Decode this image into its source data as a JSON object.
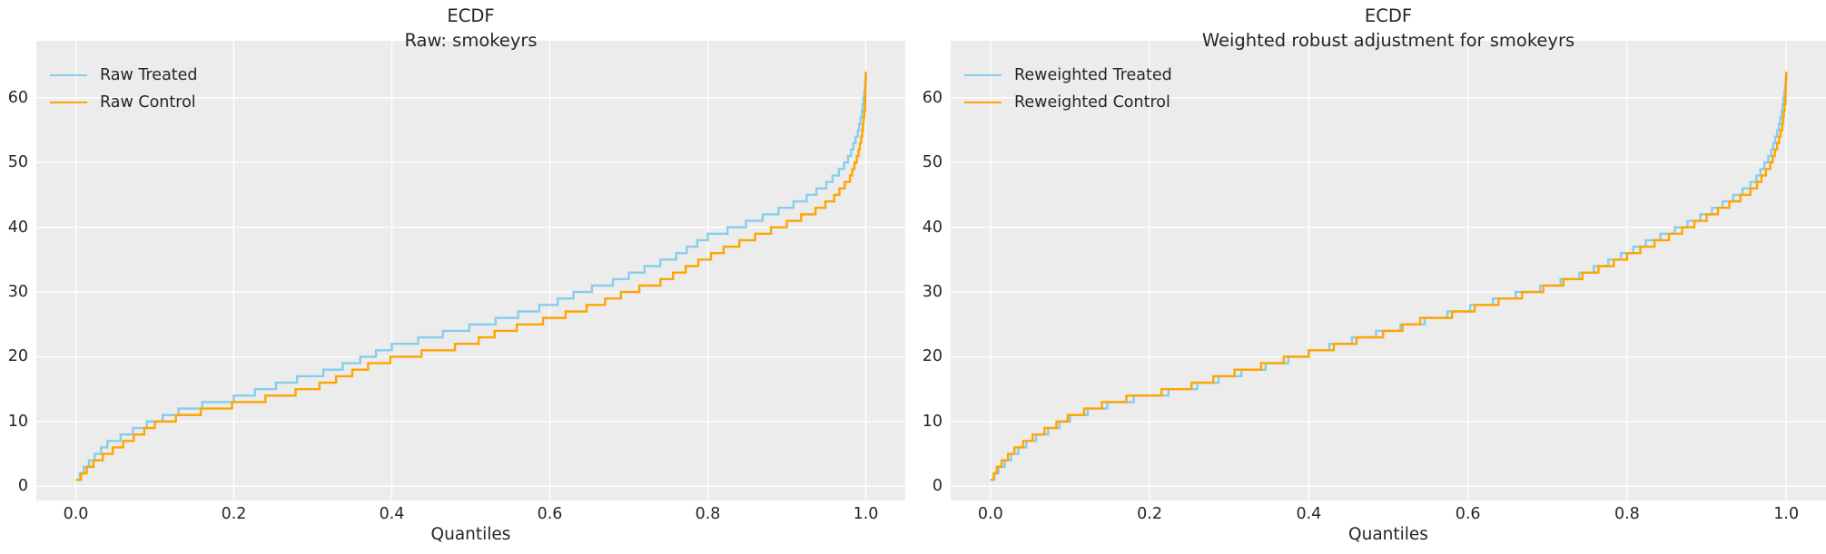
{
  "figure": {
    "background": "#ffffff",
    "axes_background": "#ececec",
    "grid_color": "#ffffff",
    "text_color": "#262626",
    "treated_color": "#87CEEB",
    "control_color": "#FFA500"
  },
  "chart_data": [
    {
      "type": "line",
      "subtype": "quantile-step-ecdf",
      "title": "ECDF",
      "subtitle": "Raw: smokeyrs",
      "xlabel": "Quantiles",
      "xlim": [
        -0.05,
        1.05
      ],
      "ylim": [
        -2.2,
        68.8
      ],
      "grid": true,
      "legend_position": "upper left",
      "xticks": {
        "values": [
          0,
          0.2,
          0.4,
          0.6,
          0.8,
          1.0
        ],
        "labels": [
          "0.0",
          "0.2",
          "0.4",
          "0.6",
          "0.8",
          "1.0"
        ]
      },
      "yticks": {
        "values": [
          0,
          10,
          20,
          30,
          40,
          50,
          60
        ],
        "labels": [
          "0",
          "10",
          "20",
          "30",
          "40",
          "50",
          "60"
        ]
      },
      "series": [
        {
          "name": "Raw Treated",
          "color": "#87CEEB",
          "anchors": [
            [
              0,
              1
            ],
            [
              0.01,
              3
            ],
            [
              0.02,
              4.5
            ],
            [
              0.04,
              7
            ],
            [
              0.06,
              8.2
            ],
            [
              0.08,
              9.5
            ],
            [
              0.1,
              10.5
            ],
            [
              0.13,
              12
            ],
            [
              0.16,
              13
            ],
            [
              0.2,
              14
            ],
            [
              0.24,
              15.5
            ],
            [
              0.28,
              17
            ],
            [
              0.32,
              18.2
            ],
            [
              0.36,
              20
            ],
            [
              0.4,
              22
            ],
            [
              0.44,
              23.2
            ],
            [
              0.48,
              24.5
            ],
            [
              0.52,
              25.6
            ],
            [
              0.56,
              27
            ],
            [
              0.6,
              28.5
            ],
            [
              0.64,
              30.5
            ],
            [
              0.68,
              32
            ],
            [
              0.72,
              34
            ],
            [
              0.76,
              36
            ],
            [
              0.8,
              39
            ],
            [
              0.84,
              40.6
            ],
            [
              0.88,
              42.5
            ],
            [
              0.92,
              44.6
            ],
            [
              0.95,
              47
            ],
            [
              0.97,
              49.5
            ],
            [
              0.98,
              51.5
            ],
            [
              0.99,
              55
            ],
            [
              0.995,
              58
            ],
            [
              0.999,
              62
            ],
            [
              1,
              64
            ]
          ]
        },
        {
          "name": "Raw Control",
          "color": "#FFA500",
          "anchors": [
            [
              0,
              1
            ],
            [
              0.01,
              2.5
            ],
            [
              0.02,
              3.8
            ],
            [
              0.04,
              5.5
            ],
            [
              0.06,
              7
            ],
            [
              0.08,
              8.5
            ],
            [
              0.1,
              10
            ],
            [
              0.14,
              11.5
            ],
            [
              0.18,
              12.6
            ],
            [
              0.22,
              13.5
            ],
            [
              0.26,
              14.5
            ],
            [
              0.3,
              15.6
            ],
            [
              0.34,
              17.5
            ],
            [
              0.38,
              19.5
            ],
            [
              0.42,
              20.6
            ],
            [
              0.46,
              21.5
            ],
            [
              0.5,
              22.5
            ],
            [
              0.54,
              24.5
            ],
            [
              0.58,
              25.6
            ],
            [
              0.62,
              27
            ],
            [
              0.66,
              28.5
            ],
            [
              0.7,
              30.5
            ],
            [
              0.74,
              32
            ],
            [
              0.78,
              34.5
            ],
            [
              0.82,
              37
            ],
            [
              0.86,
              39
            ],
            [
              0.9,
              41
            ],
            [
              0.94,
              43.2
            ],
            [
              0.96,
              45
            ],
            [
              0.98,
              48
            ],
            [
              0.99,
              51.5
            ],
            [
              0.995,
              54.5
            ],
            [
              0.999,
              59
            ],
            [
              1,
              64
            ]
          ]
        }
      ]
    },
    {
      "type": "line",
      "subtype": "quantile-step-ecdf",
      "title": "ECDF",
      "subtitle": "Weighted robust adjustment for smokeyrs",
      "xlabel": "Quantiles",
      "xlim": [
        -0.05,
        1.05
      ],
      "ylim": [
        -2.2,
        68.8
      ],
      "grid": true,
      "legend_position": "upper left",
      "xticks": {
        "values": [
          0,
          0.2,
          0.4,
          0.6,
          0.8,
          1.0
        ],
        "labels": [
          "0.0",
          "0.2",
          "0.4",
          "0.6",
          "0.8",
          "1.0"
        ]
      },
      "yticks": {
        "values": [
          0,
          10,
          20,
          30,
          40,
          50,
          60
        ],
        "labels": [
          "0",
          "10",
          "20",
          "30",
          "40",
          "50",
          "60"
        ]
      },
      "series": [
        {
          "name": "Reweighted Treated",
          "color": "#87CEEB",
          "anchors": [
            [
              0,
              1
            ],
            [
              0.01,
              3
            ],
            [
              0.03,
              5.5
            ],
            [
              0.05,
              7.5
            ],
            [
              0.08,
              9.5
            ],
            [
              0.1,
              11
            ],
            [
              0.14,
              12.8
            ],
            [
              0.18,
              14
            ],
            [
              0.22,
              14.9
            ],
            [
              0.26,
              16
            ],
            [
              0.3,
              17.5
            ],
            [
              0.34,
              18.8
            ],
            [
              0.38,
              20.2
            ],
            [
              0.42,
              21.8
            ],
            [
              0.46,
              23.2
            ],
            [
              0.5,
              24.5
            ],
            [
              0.54,
              25.8
            ],
            [
              0.58,
              27.2
            ],
            [
              0.62,
              28.6
            ],
            [
              0.66,
              30
            ],
            [
              0.7,
              31.3
            ],
            [
              0.74,
              33
            ],
            [
              0.78,
              35.2
            ],
            [
              0.82,
              37.8
            ],
            [
              0.86,
              40
            ],
            [
              0.9,
              42.5
            ],
            [
              0.94,
              45.5
            ],
            [
              0.96,
              47.5
            ],
            [
              0.98,
              51.5
            ],
            [
              0.99,
              55.5
            ],
            [
              0.995,
              58.5
            ],
            [
              0.999,
              62.5
            ],
            [
              1,
              64
            ]
          ]
        },
        {
          "name": "Reweighted Control",
          "color": "#FFA500",
          "anchors": [
            [
              0,
              1
            ],
            [
              0.01,
              3.5
            ],
            [
              0.03,
              6
            ],
            [
              0.05,
              7.8
            ],
            [
              0.08,
              9.8
            ],
            [
              0.1,
              11.2
            ],
            [
              0.14,
              13
            ],
            [
              0.18,
              14.3
            ],
            [
              0.22,
              15.1
            ],
            [
              0.26,
              16.2
            ],
            [
              0.3,
              17.8
            ],
            [
              0.34,
              19
            ],
            [
              0.38,
              20.4
            ],
            [
              0.42,
              21.6
            ],
            [
              0.46,
              23
            ],
            [
              0.5,
              24.2
            ],
            [
              0.54,
              26
            ],
            [
              0.58,
              27
            ],
            [
              0.62,
              28.4
            ],
            [
              0.66,
              29.7
            ],
            [
              0.7,
              31.2
            ],
            [
              0.74,
              32.8
            ],
            [
              0.78,
              34.8
            ],
            [
              0.82,
              37.2
            ],
            [
              0.86,
              39.4
            ],
            [
              0.9,
              42
            ],
            [
              0.94,
              44.8
            ],
            [
              0.96,
              46.4
            ],
            [
              0.98,
              50
            ],
            [
              0.99,
              53.5
            ],
            [
              0.995,
              56
            ],
            [
              0.999,
              60
            ],
            [
              1,
              64
            ]
          ]
        }
      ]
    }
  ]
}
